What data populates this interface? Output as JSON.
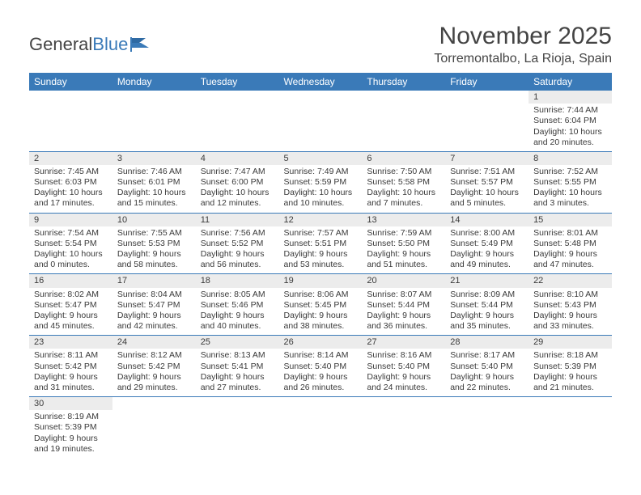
{
  "logo": {
    "text_a": "General",
    "text_b": "Blue"
  },
  "title": "November 2025",
  "location": "Torremontalbo, La Rioja, Spain",
  "colors": {
    "header_bg": "#3a7ab8",
    "header_fg": "#ffffff",
    "daynum_bg": "#ececec",
    "border": "#3a7ab8",
    "page_bg": "#ffffff",
    "text": "#3a3a3a"
  },
  "weekdays": [
    "Sunday",
    "Monday",
    "Tuesday",
    "Wednesday",
    "Thursday",
    "Friday",
    "Saturday"
  ],
  "weeks": [
    [
      null,
      null,
      null,
      null,
      null,
      null,
      {
        "n": "1",
        "sunrise": "7:44 AM",
        "sunset": "6:04 PM",
        "day_h": "10",
        "day_m": "20"
      }
    ],
    [
      {
        "n": "2",
        "sunrise": "7:45 AM",
        "sunset": "6:03 PM",
        "day_h": "10",
        "day_m": "17"
      },
      {
        "n": "3",
        "sunrise": "7:46 AM",
        "sunset": "6:01 PM",
        "day_h": "10",
        "day_m": "15"
      },
      {
        "n": "4",
        "sunrise": "7:47 AM",
        "sunset": "6:00 PM",
        "day_h": "10",
        "day_m": "12"
      },
      {
        "n": "5",
        "sunrise": "7:49 AM",
        "sunset": "5:59 PM",
        "day_h": "10",
        "day_m": "10"
      },
      {
        "n": "6",
        "sunrise": "7:50 AM",
        "sunset": "5:58 PM",
        "day_h": "10",
        "day_m": "7"
      },
      {
        "n": "7",
        "sunrise": "7:51 AM",
        "sunset": "5:57 PM",
        "day_h": "10",
        "day_m": "5"
      },
      {
        "n": "8",
        "sunrise": "7:52 AM",
        "sunset": "5:55 PM",
        "day_h": "10",
        "day_m": "3"
      }
    ],
    [
      {
        "n": "9",
        "sunrise": "7:54 AM",
        "sunset": "5:54 PM",
        "day_h": "10",
        "day_m": "0"
      },
      {
        "n": "10",
        "sunrise": "7:55 AM",
        "sunset": "5:53 PM",
        "day_h": "9",
        "day_m": "58"
      },
      {
        "n": "11",
        "sunrise": "7:56 AM",
        "sunset": "5:52 PM",
        "day_h": "9",
        "day_m": "56"
      },
      {
        "n": "12",
        "sunrise": "7:57 AM",
        "sunset": "5:51 PM",
        "day_h": "9",
        "day_m": "53"
      },
      {
        "n": "13",
        "sunrise": "7:59 AM",
        "sunset": "5:50 PM",
        "day_h": "9",
        "day_m": "51"
      },
      {
        "n": "14",
        "sunrise": "8:00 AM",
        "sunset": "5:49 PM",
        "day_h": "9",
        "day_m": "49"
      },
      {
        "n": "15",
        "sunrise": "8:01 AM",
        "sunset": "5:48 PM",
        "day_h": "9",
        "day_m": "47"
      }
    ],
    [
      {
        "n": "16",
        "sunrise": "8:02 AM",
        "sunset": "5:47 PM",
        "day_h": "9",
        "day_m": "45"
      },
      {
        "n": "17",
        "sunrise": "8:04 AM",
        "sunset": "5:47 PM",
        "day_h": "9",
        "day_m": "42"
      },
      {
        "n": "18",
        "sunrise": "8:05 AM",
        "sunset": "5:46 PM",
        "day_h": "9",
        "day_m": "40"
      },
      {
        "n": "19",
        "sunrise": "8:06 AM",
        "sunset": "5:45 PM",
        "day_h": "9",
        "day_m": "38"
      },
      {
        "n": "20",
        "sunrise": "8:07 AM",
        "sunset": "5:44 PM",
        "day_h": "9",
        "day_m": "36"
      },
      {
        "n": "21",
        "sunrise": "8:09 AM",
        "sunset": "5:44 PM",
        "day_h": "9",
        "day_m": "35"
      },
      {
        "n": "22",
        "sunrise": "8:10 AM",
        "sunset": "5:43 PM",
        "day_h": "9",
        "day_m": "33"
      }
    ],
    [
      {
        "n": "23",
        "sunrise": "8:11 AM",
        "sunset": "5:42 PM",
        "day_h": "9",
        "day_m": "31"
      },
      {
        "n": "24",
        "sunrise": "8:12 AM",
        "sunset": "5:42 PM",
        "day_h": "9",
        "day_m": "29"
      },
      {
        "n": "25",
        "sunrise": "8:13 AM",
        "sunset": "5:41 PM",
        "day_h": "9",
        "day_m": "27"
      },
      {
        "n": "26",
        "sunrise": "8:14 AM",
        "sunset": "5:40 PM",
        "day_h": "9",
        "day_m": "26"
      },
      {
        "n": "27",
        "sunrise": "8:16 AM",
        "sunset": "5:40 PM",
        "day_h": "9",
        "day_m": "24"
      },
      {
        "n": "28",
        "sunrise": "8:17 AM",
        "sunset": "5:40 PM",
        "day_h": "9",
        "day_m": "22"
      },
      {
        "n": "29",
        "sunrise": "8:18 AM",
        "sunset": "5:39 PM",
        "day_h": "9",
        "day_m": "21"
      }
    ],
    [
      {
        "n": "30",
        "sunrise": "8:19 AM",
        "sunset": "5:39 PM",
        "day_h": "9",
        "day_m": "19"
      },
      null,
      null,
      null,
      null,
      null,
      null
    ]
  ]
}
